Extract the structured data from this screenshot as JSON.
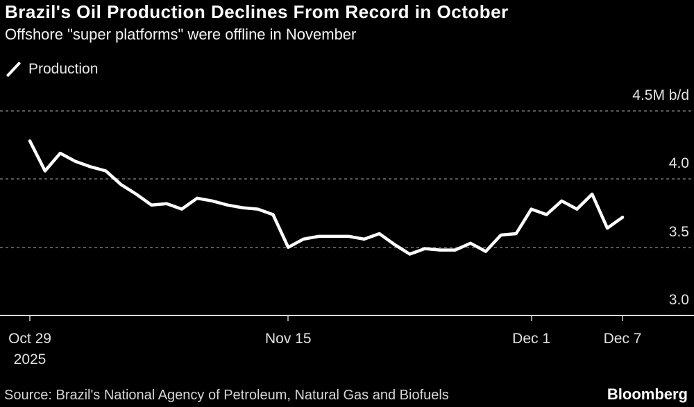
{
  "header": {
    "title": "Brazil's Oil Production Declines From Record in October",
    "subtitle": "Offshore \"super platforms\" were offline in November"
  },
  "legend": {
    "label": "Production"
  },
  "footer": {
    "source": "Source: Brazil's National Agency of Petroleum, Natural Gas and Biofuels",
    "brand": "Bloomberg"
  },
  "colors": {
    "background": "#000000",
    "line": "#ffffff",
    "gridline": "#585858",
    "axis": "#d9d9d9",
    "text": "#e2e2e2"
  },
  "chart_data": {
    "type": "line",
    "title": "Brazil's Oil Production Declines From Record in October",
    "subtitle": "Offshore \"super platforms\" were offline in November",
    "unit": "M b/d",
    "grid": "horizontal-dashed",
    "legend_position": "top-left",
    "ylim": [
      3.0,
      4.5
    ],
    "yticks": [
      {
        "value": 4.5,
        "label": "4.5M b/d"
      },
      {
        "value": 4.0,
        "label": "4.0"
      },
      {
        "value": 3.5,
        "label": "3.5"
      },
      {
        "value": 3.0,
        "label": "3.0"
      }
    ],
    "xticks": [
      {
        "index": 0,
        "label": "Oct 29",
        "sublabel": "2025"
      },
      {
        "index": 17,
        "label": "Nov 15"
      },
      {
        "index": 33,
        "label": "Dec 1"
      },
      {
        "index": 39,
        "label": "Dec 7"
      }
    ],
    "series": [
      {
        "name": "Production",
        "color": "#ffffff",
        "x": [
          "Oct 29",
          "Oct 30",
          "Oct 31",
          "Nov 1",
          "Nov 2",
          "Nov 3",
          "Nov 4",
          "Nov 5",
          "Nov 6",
          "Nov 7",
          "Nov 8",
          "Nov 9",
          "Nov 10",
          "Nov 11",
          "Nov 12",
          "Nov 13",
          "Nov 14",
          "Nov 15",
          "Nov 16",
          "Nov 17",
          "Nov 18",
          "Nov 19",
          "Nov 20",
          "Nov 21",
          "Nov 22",
          "Nov 23",
          "Nov 24",
          "Nov 25",
          "Nov 26",
          "Nov 27",
          "Nov 28",
          "Nov 29",
          "Nov 30",
          "Dec 1",
          "Dec 2",
          "Dec 3",
          "Dec 4",
          "Dec 5",
          "Dec 6",
          "Dec 7"
        ],
        "values": [
          4.28,
          4.06,
          4.19,
          4.13,
          4.09,
          4.06,
          3.96,
          3.89,
          3.81,
          3.82,
          3.78,
          3.86,
          3.84,
          3.81,
          3.79,
          3.78,
          3.74,
          3.5,
          3.56,
          3.58,
          3.58,
          3.58,
          3.56,
          3.6,
          3.52,
          3.45,
          3.49,
          3.48,
          3.48,
          3.53,
          3.47,
          3.59,
          3.6,
          3.78,
          3.74,
          3.84,
          3.78,
          3.89,
          3.64,
          3.72
        ]
      }
    ]
  }
}
